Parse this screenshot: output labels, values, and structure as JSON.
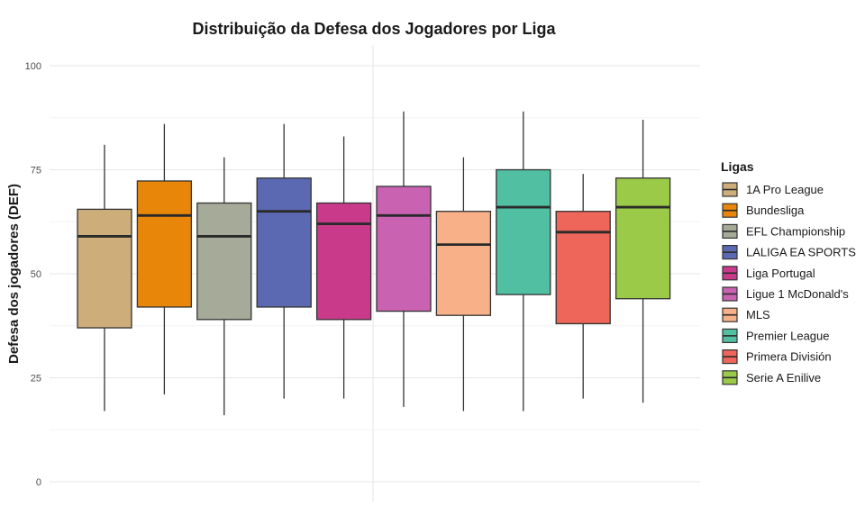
{
  "chart_data": {
    "type": "boxplot",
    "title": "Distribuição da Defesa dos Jogadores por Liga",
    "xlabel": "",
    "ylabel": "Defesa dos jogadores (DEF)",
    "ylim": [
      0,
      100
    ],
    "y_ticks": [
      0,
      25,
      50,
      75,
      100
    ],
    "grid": true,
    "legend": {
      "title": "Ligas",
      "position": "right"
    },
    "series": [
      {
        "name": "1A Pro League",
        "color": "#CDAD7A",
        "whisker_low": 17,
        "q1": 37,
        "median": 59,
        "q3": 65.5,
        "whisker_high": 81
      },
      {
        "name": "Bundesliga",
        "color": "#E8860A",
        "whisker_low": 21,
        "q1": 42,
        "median": 64,
        "q3": 72.3,
        "whisker_high": 86
      },
      {
        "name": "EFL Championship",
        "color": "#A6AA98",
        "whisker_low": 16,
        "q1": 39,
        "median": 59,
        "q3": 67,
        "whisker_high": 78
      },
      {
        "name": "LALIGA EA SPORTS",
        "color": "#5B69B3",
        "whisker_low": 20,
        "q1": 42,
        "median": 65,
        "q3": 73,
        "whisker_high": 86
      },
      {
        "name": "Liga Portugal",
        "color": "#CA3A8B",
        "whisker_low": 20,
        "q1": 39,
        "median": 62,
        "q3": 67,
        "whisker_high": 83
      },
      {
        "name": "Ligue 1 McDonald's",
        "color": "#CA62B2",
        "whisker_low": 18,
        "q1": 41,
        "median": 64,
        "q3": 71,
        "whisker_high": 89
      },
      {
        "name": "MLS",
        "color": "#F8B088",
        "whisker_low": 17,
        "q1": 40,
        "median": 57,
        "q3": 65,
        "whisker_high": 78
      },
      {
        "name": "Premier League",
        "color": "#50BFA2",
        "whisker_low": 17,
        "q1": 45,
        "median": 66,
        "q3": 75,
        "whisker_high": 89
      },
      {
        "name": "Primera División",
        "color": "#EE655A",
        "whisker_low": 20,
        "q1": 38,
        "median": 60,
        "q3": 65,
        "whisker_high": 74
      },
      {
        "name": "Serie A Enilive",
        "color": "#9ACA48",
        "whisker_low": 19,
        "q1": 44,
        "median": 66,
        "q3": 73,
        "whisker_high": 87
      }
    ]
  }
}
